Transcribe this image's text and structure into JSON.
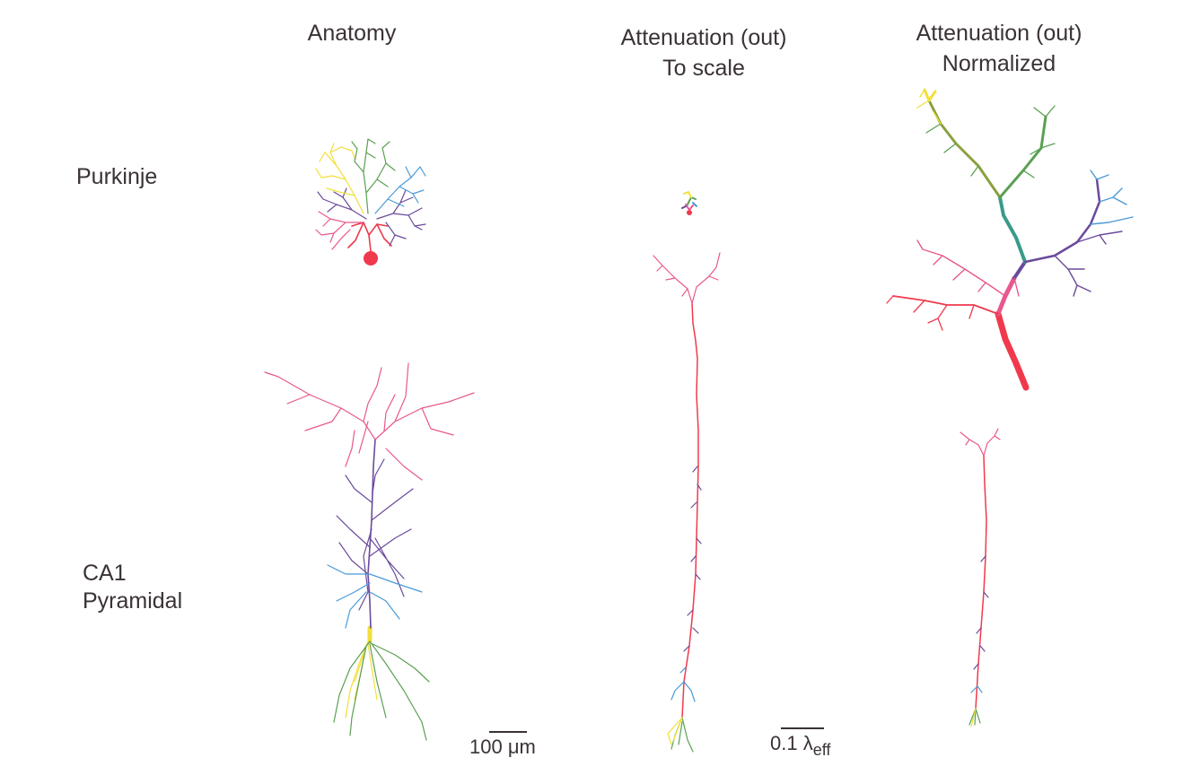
{
  "columns": {
    "anatomy": "Anatomy",
    "to_scale": [
      "Attenuation (out)",
      "To scale"
    ],
    "normalized": [
      "Attenuation (out)",
      "Normalized"
    ]
  },
  "rows": {
    "purkinje": "Purkinje",
    "ca1": [
      "CA1",
      "Pyramidal"
    ]
  },
  "scale_bars": {
    "anatomy": "100 μm",
    "attenuation_value": "0.1 λ",
    "attenuation_sub": "eff"
  },
  "colors": {
    "red": "#f0394d",
    "pink": "#e8588e",
    "purple": "#6b4a9c",
    "blue": "#4a9ad8",
    "green": "#5aa052",
    "yellow": "#f2df3a",
    "teal": "#3a9a8a",
    "olive": "#8aa040"
  }
}
